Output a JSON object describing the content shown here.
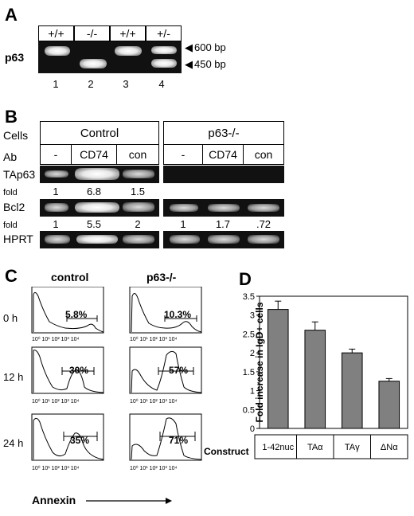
{
  "panel_a": {
    "letter": "A",
    "gene_label": "p63",
    "genotypes": [
      "+/+",
      "-/-",
      "+/+",
      "+/-"
    ],
    "lane_numbers": [
      "1",
      "2",
      "3",
      "4"
    ],
    "marker_600": "600 bp",
    "marker_450": "450 bp"
  },
  "panel_b": {
    "letter": "B",
    "cells_label": "Cells",
    "ab_label": "Ab",
    "control_label": "Control",
    "knockout_label": "p63-/-",
    "ab_cols": [
      "-",
      "CD74",
      "con"
    ],
    "rows": {
      "tap63": "TAp63",
      "bcl2": "Bcl2",
      "hprt": "HPRT",
      "fold": "fold"
    },
    "tap63_fold_control": [
      "1",
      "6.8",
      "1.5"
    ],
    "bcl2_fold_control": [
      "1",
      "5.5",
      "2"
    ],
    "bcl2_fold_knockout": [
      "1",
      "1.7",
      ".72"
    ]
  },
  "panel_c": {
    "letter": "C",
    "col_control": "control",
    "col_knockout": "p63-/-",
    "times": [
      "0 h",
      "12 h",
      "24 h"
    ],
    "percents_control": [
      "5.8%",
      "30%",
      "35%"
    ],
    "percents_knockout": [
      "10.3%",
      "57%",
      "71%"
    ],
    "x_axis_label": "Annexin"
  },
  "panel_d": {
    "letter": "D",
    "chart_data": {
      "type": "bar",
      "ylabel": "Fold increase in IgD+ cells",
      "xlabel": "Construct",
      "categories": [
        "1-42nuc",
        "TAα",
        "TAγ",
        "ΔNα"
      ],
      "values": [
        3.15,
        2.6,
        2.0,
        1.25
      ],
      "errors": [
        0.22,
        0.22,
        0.1,
        0.07
      ],
      "ylim": [
        0,
        3.5
      ],
      "yticks": [
        "0",
        "0.5",
        "1",
        "1.5",
        "2",
        "2.5",
        "3",
        "3.5"
      ],
      "bar_color": "#808080"
    }
  }
}
